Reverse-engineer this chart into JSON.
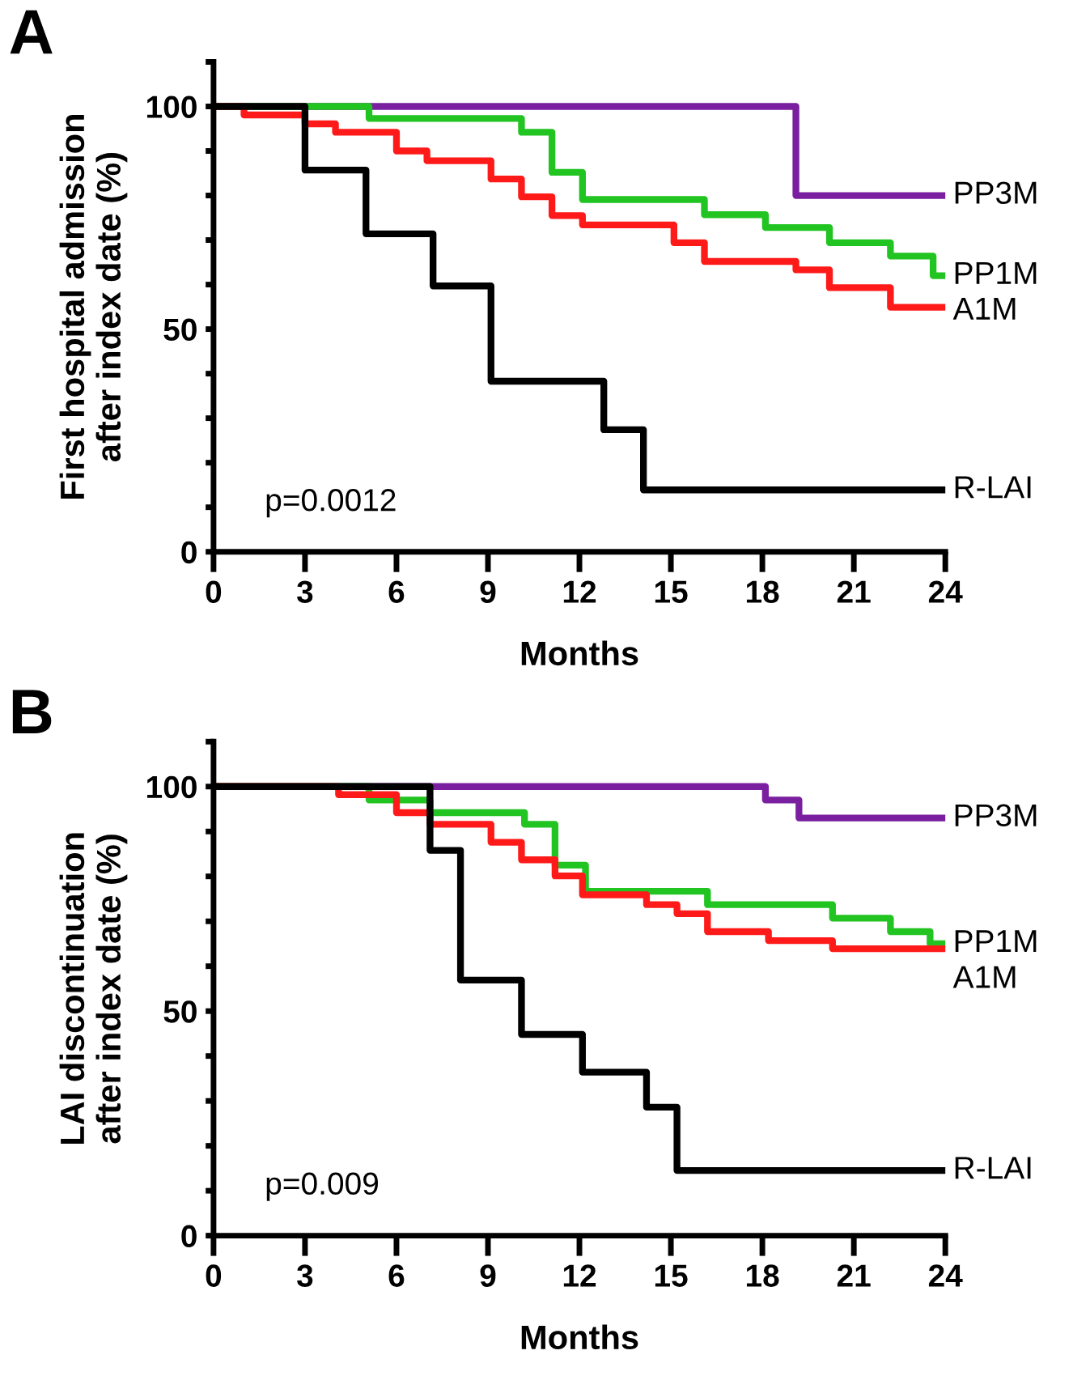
{
  "chart_data": [
    {
      "type": "step",
      "ylabel": "First hospital admission\nafter index date (%)",
      "xlabel": "Months",
      "annotations": [
        "A",
        "p=0.0012"
      ],
      "xlim": [
        0,
        24
      ],
      "xticks": [
        0,
        3,
        6,
        9,
        12,
        15,
        18,
        21,
        24
      ],
      "ylim": [
        0,
        110
      ],
      "yticks": [
        0,
        {
          "value": 10,
          "label": null
        },
        {
          "value": 20,
          "label": null
        },
        {
          "value": 30,
          "label": null
        },
        {
          "value": 40,
          "label": null
        },
        50,
        {
          "value": 60,
          "label": null
        },
        {
          "value": 70,
          "label": null
        },
        {
          "value": 80,
          "label": null
        },
        {
          "value": 90,
          "label": null
        },
        100,
        {
          "value": 110,
          "label": null
        }
      ],
      "grid": false,
      "legend": false,
      "series": [
        {
          "name": "PP3M",
          "color": "#7a1fa0",
          "x": [
            0,
            19.1,
            24
          ],
          "values": [
            100,
            80,
            80
          ]
        },
        {
          "name": "PP1M",
          "color": "#22c422",
          "x": [
            0,
            5.1,
            10.1,
            11.1,
            12.1,
            16.1,
            18.1,
            20.2,
            22.2,
            23.6,
            24
          ],
          "values": [
            100,
            97.3,
            94.2,
            85.2,
            79.1,
            75.7,
            72.8,
            69.4,
            66.4,
            62,
            62
          ]
        },
        {
          "name": "A1M",
          "color": "#ff1a1a",
          "x": [
            0,
            1.0,
            3.0,
            4.0,
            6.0,
            7.0,
            9.1,
            10.1,
            11.1,
            12.1,
            15.1,
            16.1,
            19.1,
            20.2,
            22.2,
            24
          ],
          "values": [
            100,
            98.1,
            96.1,
            94.2,
            90.0,
            87.8,
            83.7,
            79.7,
            75.5,
            73.4,
            69.4,
            65.2,
            63.3,
            59.3,
            54.9,
            54.9
          ]
        },
        {
          "name": "R-LAI",
          "color": "#000000",
          "x": [
            0,
            3.0,
            5.0,
            7.2,
            9.1,
            12.8,
            14.1,
            24
          ],
          "values": [
            100,
            85.7,
            71.4,
            59.7,
            38.3,
            27.4,
            13.9,
            13.9
          ]
        }
      ]
    },
    {
      "type": "step",
      "ylabel": "LAI discontinuation\nafter index date (%)",
      "xlabel": "Months",
      "annotations": [
        "B",
        "p=0.009"
      ],
      "xlim": [
        0,
        24
      ],
      "xticks": [
        0,
        3,
        6,
        9,
        12,
        15,
        18,
        21,
        24
      ],
      "ylim": [
        0,
        110
      ],
      "yticks": [
        0,
        {
          "value": 10,
          "label": null
        },
        {
          "value": 20,
          "label": null
        },
        {
          "value": 30,
          "label": null
        },
        {
          "value": 40,
          "label": null
        },
        50,
        {
          "value": 60,
          "label": null
        },
        {
          "value": 70,
          "label": null
        },
        {
          "value": 80,
          "label": null
        },
        {
          "value": 90,
          "label": null
        },
        100,
        {
          "value": 110,
          "label": null
        }
      ],
      "grid": false,
      "legend": false,
      "series": [
        {
          "name": "PP3M",
          "color": "#7a1fa0",
          "x": [
            0,
            18.1,
            19.2,
            24
          ],
          "values": [
            100,
            97.0,
            93.0,
            93.0
          ]
        },
        {
          "name": "PP1M",
          "color": "#22c422",
          "x": [
            0,
            5.1,
            7.1,
            10.2,
            11.2,
            12.2,
            16.2,
            20.3,
            22.2,
            23.5,
            24
          ],
          "values": [
            100,
            97.0,
            94.2,
            91.6,
            82.5,
            76.7,
            73.7,
            70.7,
            67.7,
            65,
            65
          ]
        },
        {
          "name": "A1M",
          "color": "#ff1a1a",
          "x": [
            0,
            4.1,
            6.0,
            7.1,
            9.1,
            10.1,
            11.2,
            12.1,
            14.2,
            15.2,
            16.2,
            18.2,
            20.3,
            24
          ],
          "values": [
            100,
            98.2,
            94.2,
            91.6,
            87.6,
            83.7,
            80.1,
            75.9,
            73.7,
            71.7,
            67.7,
            65.7,
            63.9,
            63.9
          ]
        },
        {
          "name": "R-LAI",
          "color": "#000000",
          "x": [
            0,
            7.1,
            8.1,
            10.1,
            12.1,
            14.2,
            15.2,
            24
          ],
          "values": [
            100,
            85.8,
            56.9,
            44.8,
            36.4,
            28.6,
            14.5,
            14.5
          ]
        }
      ]
    }
  ]
}
